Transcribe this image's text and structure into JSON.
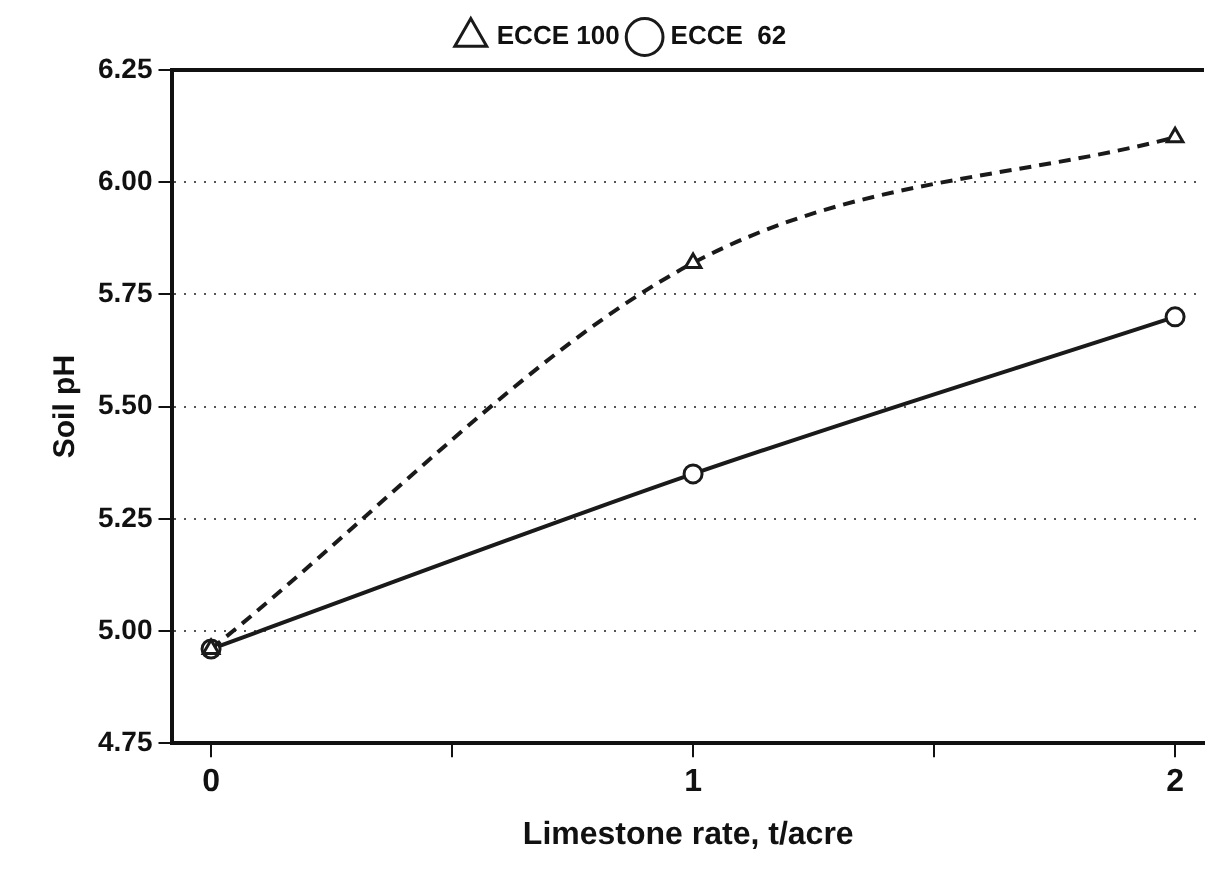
{
  "chart_data": {
    "type": "line",
    "xlabel": "Limestone rate, t/acre",
    "ylabel": "Soil pH",
    "x": [
      0,
      1,
      2
    ],
    "series": [
      {
        "name": "ECCE 100",
        "color": "#1a1a1a",
        "values": [
          4.96,
          5.82,
          6.1
        ],
        "marker": "triangle",
        "line_style": "dashed"
      },
      {
        "name": "ECCE  62",
        "color": "#1a1a1a",
        "values": [
          4.96,
          5.35,
          5.7
        ],
        "marker": "circle",
        "line_style": "solid"
      }
    ],
    "xlim": [
      -0.08,
      2.06
    ],
    "xticks": [
      0,
      {
        "value": 0.5,
        "label": null
      },
      1,
      {
        "value": 1.5,
        "label": null
      },
      2
    ],
    "ylim": [
      4.75,
      6.25
    ],
    "yticks": [
      4.75,
      {
        "value": 5,
        "label": "5.00"
      },
      5.25,
      {
        "value": 5.5,
        "label": "5.50"
      },
      5.75,
      {
        "value": 6,
        "label": "6.00"
      },
      6.25
    ],
    "grid": "y",
    "legend": "top"
  }
}
